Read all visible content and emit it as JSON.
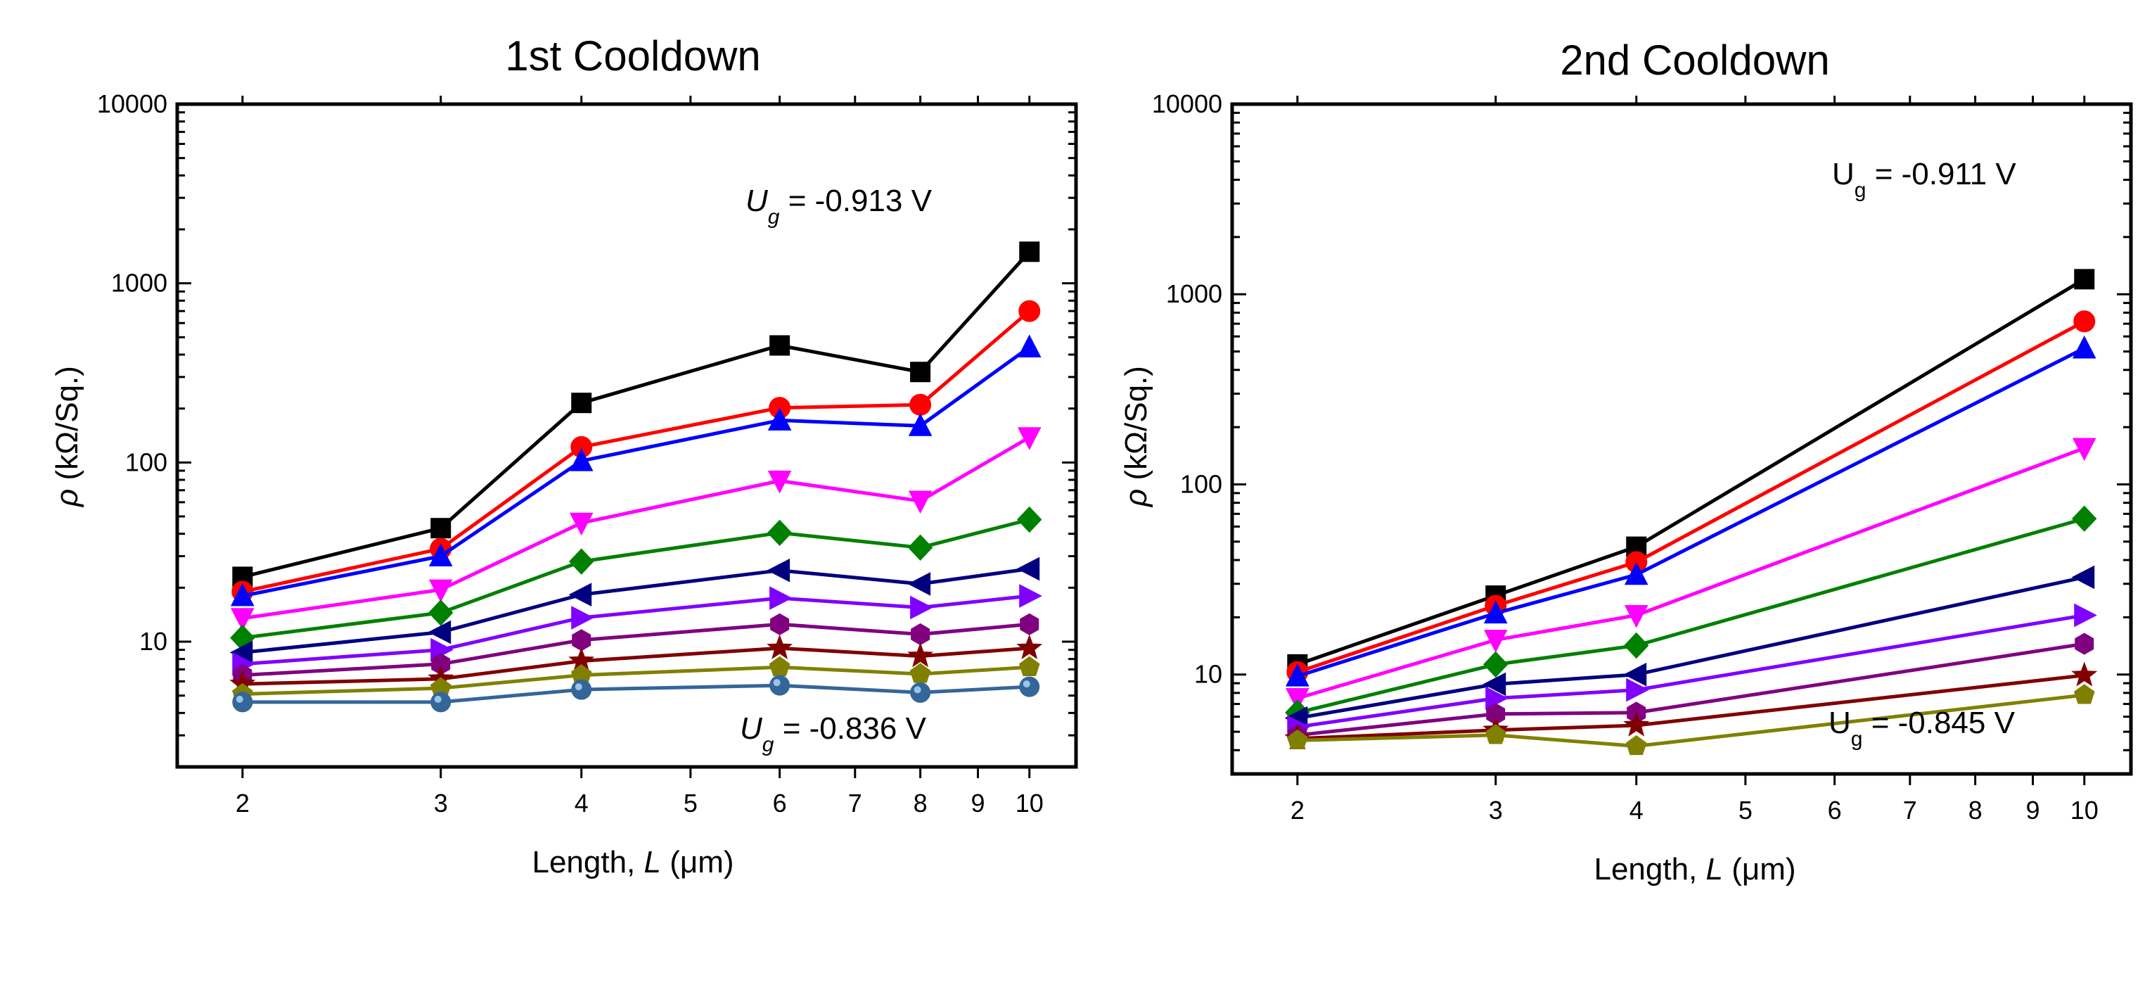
{
  "chart_data": [
    {
      "type": "line",
      "title": "1st Cooldown",
      "xlabel": {
        "prefix": "Length, ",
        "var": "L",
        "suffix": " (μm)"
      },
      "ylabel": {
        "rho": "ρ",
        "unit": " (kΩ/Sq.)"
      },
      "xscale": "log",
      "yscale": "log",
      "xlim": [
        1.75,
        11.0
      ],
      "ylim": [
        2,
        10000
      ],
      "xticks": [
        2,
        3,
        4,
        5,
        6,
        7,
        8,
        9,
        10
      ],
      "xtick_labels": [
        "2",
        "3",
        "4",
        "5",
        "6",
        "7",
        "8",
        "9",
        "10"
      ],
      "yticks": [
        10,
        100,
        1000,
        10000
      ],
      "ytick_labels": [
        "10",
        "100",
        "1000",
        "10000"
      ],
      "annotations": [
        {
          "id": "top",
          "var": "U",
          "sub": "g",
          "italic": true,
          "text": " = -0.913 V"
        },
        {
          "id": "bottom",
          "var": "U",
          "sub": "g",
          "italic": true,
          "text": " = -0.836 V"
        }
      ],
      "x": [
        2,
        3,
        4,
        6,
        8,
        10
      ],
      "series": [
        {
          "name": "s1",
          "color": "#000000",
          "marker": "square",
          "values": [
            23,
            43,
            215,
            450,
            320,
            1500
          ]
        },
        {
          "name": "s2",
          "color": "#ff0000",
          "marker": "circle",
          "values": [
            19,
            33,
            122,
            202,
            210,
            700
          ]
        },
        {
          "name": "s3",
          "color": "#0000ff",
          "marker": "triangle-up",
          "values": [
            18,
            30,
            102,
            172,
            160,
            440
          ]
        },
        {
          "name": "s4",
          "color": "#ff00ff",
          "marker": "triangle-down",
          "values": [
            13.5,
            19.5,
            46,
            79,
            61,
            138
          ]
        },
        {
          "name": "s5",
          "color": "#008000",
          "marker": "diamond",
          "values": [
            10.5,
            14.5,
            28,
            40.5,
            33.5,
            48
          ]
        },
        {
          "name": "s6",
          "color": "#000080",
          "marker": "triangle-left",
          "values": [
            8.7,
            11.3,
            18.3,
            25,
            21,
            25.5
          ]
        },
        {
          "name": "s7",
          "color": "#8000ff",
          "marker": "triangle-right",
          "values": [
            7.5,
            9,
            13.6,
            17.5,
            15.5,
            18
          ]
        },
        {
          "name": "s8",
          "color": "#800080",
          "marker": "hexagon",
          "values": [
            6.5,
            7.5,
            10.2,
            12.5,
            11,
            12.5
          ]
        },
        {
          "name": "s9",
          "color": "#800000",
          "marker": "star",
          "values": [
            5.8,
            6.2,
            7.8,
            9.2,
            8.3,
            9.2
          ]
        },
        {
          "name": "s10",
          "color": "#808000",
          "marker": "pentagon",
          "values": [
            5.1,
            5.5,
            6.5,
            7.2,
            6.6,
            7.2
          ]
        },
        {
          "name": "s11",
          "color": "#336699",
          "marker": "ball",
          "values": [
            4.6,
            4.6,
            5.4,
            5.7,
            5.2,
            5.6
          ]
        }
      ]
    },
    {
      "type": "line",
      "title": "2nd Cooldown",
      "xlabel": {
        "prefix": "Length, ",
        "var": "L",
        "suffix": " (μm)"
      },
      "ylabel": {
        "rho": "ρ",
        "unit": " (kΩ/Sq.)"
      },
      "xscale": "log",
      "yscale": "log",
      "xlim": [
        1.75,
        11.0
      ],
      "ylim": [
        3,
        10000
      ],
      "xticks": [
        2,
        3,
        4,
        5,
        6,
        7,
        8,
        9,
        10
      ],
      "xtick_labels": [
        "2",
        "3",
        "4",
        "5",
        "6",
        "7",
        "8",
        "9",
        "10"
      ],
      "yticks": [
        10,
        100,
        1000,
        10000
      ],
      "ytick_labels": [
        "10",
        "100",
        "1000",
        "10000"
      ],
      "annotations": [
        {
          "id": "top",
          "var": "U",
          "sub": "g",
          "italic": false,
          "text": " = -0.911 V"
        },
        {
          "id": "bottom",
          "var": "U",
          "sub": "g",
          "italic": false,
          "text": " = -0.845 V"
        }
      ],
      "x": [
        2,
        3,
        4,
        10
      ],
      "series": [
        {
          "name": "s1",
          "color": "#000000",
          "marker": "square",
          "values": [
            11.3,
            26,
            47,
            1200
          ]
        },
        {
          "name": "s2",
          "color": "#ff0000",
          "marker": "circle",
          "values": [
            10.3,
            23,
            39,
            720
          ]
        },
        {
          "name": "s3",
          "color": "#0000ff",
          "marker": "triangle-up",
          "values": [
            9.8,
            21,
            33.5,
            520
          ]
        },
        {
          "name": "s4",
          "color": "#ff00ff",
          "marker": "triangle-down",
          "values": [
            7.5,
            15.2,
            20.5,
            155
          ]
        },
        {
          "name": "s5",
          "color": "#008000",
          "marker": "diamond",
          "values": [
            6.3,
            11.3,
            14.2,
            66
          ]
        },
        {
          "name": "s6",
          "color": "#000080",
          "marker": "triangle-left",
          "values": [
            5.9,
            8.9,
            10,
            32.5
          ]
        },
        {
          "name": "s7",
          "color": "#8000ff",
          "marker": "triangle-right",
          "values": [
            5.3,
            7.5,
            8.3,
            20.5
          ]
        },
        {
          "name": "s8",
          "color": "#800080",
          "marker": "hexagon",
          "values": [
            4.8,
            6.2,
            6.3,
            14.5
          ]
        },
        {
          "name": "s9",
          "color": "#800000",
          "marker": "star",
          "values": [
            4.6,
            5.1,
            5.4,
            9.9
          ]
        },
        {
          "name": "s10",
          "color": "#808000",
          "marker": "pentagon",
          "values": [
            4.5,
            4.8,
            4.2,
            7.8
          ]
        }
      ]
    }
  ]
}
